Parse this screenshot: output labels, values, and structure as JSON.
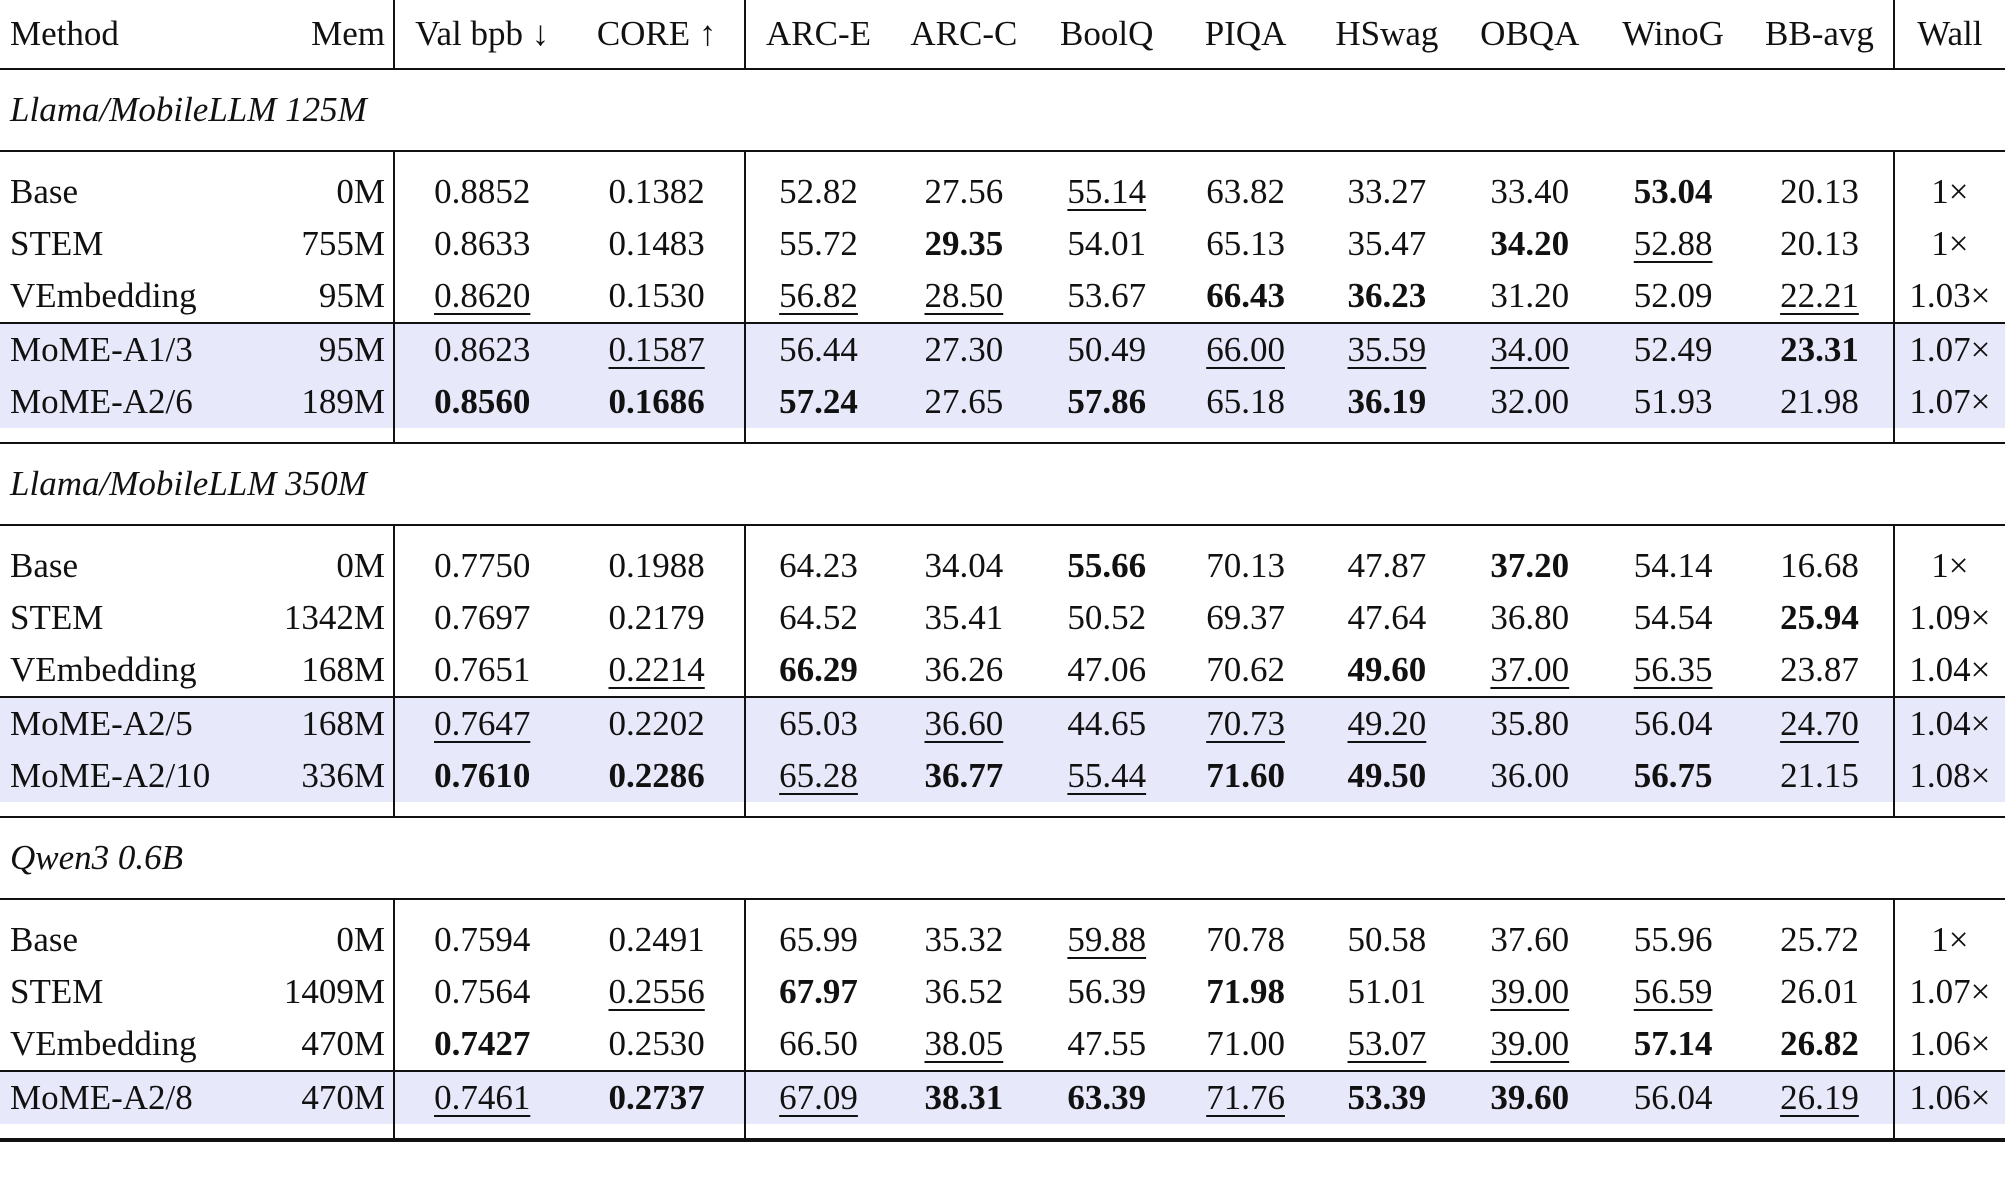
{
  "headers": [
    "Method",
    "Mem",
    "Val bpb ↓",
    "CORE ↑",
    "ARC-E",
    "ARC-C",
    "BoolQ",
    "PIQA",
    "HSwag",
    "OBQA",
    "WinoG",
    "BB-avg",
    "Wall"
  ],
  "groups": [
    {
      "title": "Llama/MobileLLM 125M",
      "rows": [
        {
          "cells": [
            "Base",
            "0M",
            "0.8852",
            "0.1382",
            "52.82",
            "27.56",
            "55.14",
            "63.82",
            "33.27",
            "33.40",
            "53.04",
            "20.13",
            "1×"
          ],
          "styles": [
            "",
            "",
            "",
            "",
            "",
            "",
            "u",
            "",
            "",
            "",
            "b",
            "",
            ""
          ],
          "highlight": false
        },
        {
          "cells": [
            "STEM",
            "755M",
            "0.8633",
            "0.1483",
            "55.72",
            "29.35",
            "54.01",
            "65.13",
            "35.47",
            "34.20",
            "52.88",
            "20.13",
            "1×"
          ],
          "styles": [
            "",
            "",
            "",
            "",
            "",
            "b",
            "",
            "",
            "",
            "b",
            "u",
            "",
            ""
          ],
          "highlight": false
        },
        {
          "cells": [
            "VEmbedding",
            "95M",
            "0.8620",
            "0.1530",
            "56.82",
            "28.50",
            "53.67",
            "66.43",
            "36.23",
            "31.20",
            "52.09",
            "22.21",
            "1.03×"
          ],
          "styles": [
            "",
            "",
            "u",
            "",
            "u",
            "u",
            "",
            "b",
            "b",
            "",
            "",
            "u",
            ""
          ],
          "highlight": false
        },
        {
          "cells": [
            "MoME-A1/3",
            "95M",
            "0.8623",
            "0.1587",
            "56.44",
            "27.30",
            "50.49",
            "66.00",
            "35.59",
            "34.00",
            "52.49",
            "23.31",
            "1.07×"
          ],
          "styles": [
            "",
            "",
            "",
            "u",
            "",
            "",
            "",
            "u",
            "u",
            "u",
            "",
            "b",
            ""
          ],
          "highlight": true
        },
        {
          "cells": [
            "MoME-A2/6",
            "189M",
            "0.8560",
            "0.1686",
            "57.24",
            "27.65",
            "57.86",
            "65.18",
            "36.19",
            "32.00",
            "51.93",
            "21.98",
            "1.07×"
          ],
          "styles": [
            "",
            "",
            "b",
            "b",
            "b",
            "",
            "b",
            "",
            "b",
            "",
            "",
            "",
            ""
          ],
          "highlight": true
        }
      ]
    },
    {
      "title": "Llama/MobileLLM 350M",
      "rows": [
        {
          "cells": [
            "Base",
            "0M",
            "0.7750",
            "0.1988",
            "64.23",
            "34.04",
            "55.66",
            "70.13",
            "47.87",
            "37.20",
            "54.14",
            "16.68",
            "1×"
          ],
          "styles": [
            "",
            "",
            "",
            "",
            "",
            "",
            "b",
            "",
            "",
            "b",
            "",
            "",
            ""
          ],
          "highlight": false
        },
        {
          "cells": [
            "STEM",
            "1342M",
            "0.7697",
            "0.2179",
            "64.52",
            "35.41",
            "50.52",
            "69.37",
            "47.64",
            "36.80",
            "54.54",
            "25.94",
            "1.09×"
          ],
          "styles": [
            "",
            "",
            "",
            "",
            "",
            "",
            "",
            "",
            "",
            "",
            "",
            "b",
            ""
          ],
          "highlight": false
        },
        {
          "cells": [
            "VEmbedding",
            "168M",
            "0.7651",
            "0.2214",
            "66.29",
            "36.26",
            "47.06",
            "70.62",
            "49.60",
            "37.00",
            "56.35",
            "23.87",
            "1.04×"
          ],
          "styles": [
            "",
            "",
            "",
            "u",
            "b",
            "",
            "",
            "",
            "b",
            "u",
            "u",
            "",
            ""
          ],
          "highlight": false
        },
        {
          "cells": [
            "MoME-A2/5",
            "168M",
            "0.7647",
            "0.2202",
            "65.03",
            "36.60",
            "44.65",
            "70.73",
            "49.20",
            "35.80",
            "56.04",
            "24.70",
            "1.04×"
          ],
          "styles": [
            "",
            "",
            "u",
            "",
            "",
            "u",
            "",
            "u",
            "u",
            "",
            "",
            "u",
            ""
          ],
          "highlight": true
        },
        {
          "cells": [
            "MoME-A2/10",
            "336M",
            "0.7610",
            "0.2286",
            "65.28",
            "36.77",
            "55.44",
            "71.60",
            "49.50",
            "36.00",
            "56.75",
            "21.15",
            "1.08×"
          ],
          "styles": [
            "",
            "",
            "b",
            "b",
            "u",
            "b",
            "u",
            "b",
            "b",
            "",
            "b",
            "",
            ""
          ],
          "highlight": true
        }
      ]
    },
    {
      "title": "Qwen3 0.6B",
      "rows": [
        {
          "cells": [
            "Base",
            "0M",
            "0.7594",
            "0.2491",
            "65.99",
            "35.32",
            "59.88",
            "70.78",
            "50.58",
            "37.60",
            "55.96",
            "25.72",
            "1×"
          ],
          "styles": [
            "",
            "",
            "",
            "",
            "",
            "",
            "u",
            "",
            "",
            "",
            "",
            "",
            ""
          ],
          "highlight": false
        },
        {
          "cells": [
            "STEM",
            "1409M",
            "0.7564",
            "0.2556",
            "67.97",
            "36.52",
            "56.39",
            "71.98",
            "51.01",
            "39.00",
            "56.59",
            "26.01",
            "1.07×"
          ],
          "styles": [
            "",
            "",
            "",
            "u",
            "b",
            "",
            "",
            "b",
            "",
            "u",
            "u",
            "",
            ""
          ],
          "highlight": false
        },
        {
          "cells": [
            "VEmbedding",
            "470M",
            "0.7427",
            "0.2530",
            "66.50",
            "38.05",
            "47.55",
            "71.00",
            "53.07",
            "39.00",
            "57.14",
            "26.82",
            "1.06×"
          ],
          "styles": [
            "",
            "",
            "b",
            "",
            "",
            "u",
            "",
            "",
            "u",
            "u",
            "b",
            "b",
            ""
          ],
          "highlight": false
        },
        {
          "cells": [
            "MoME-A2/8",
            "470M",
            "0.7461",
            "0.2737",
            "67.09",
            "38.31",
            "63.39",
            "71.76",
            "53.39",
            "39.60",
            "56.04",
            "26.19",
            "1.06×"
          ],
          "styles": [
            "",
            "",
            "u",
            "b",
            "u",
            "b",
            "b",
            "u",
            "b",
            "b",
            "",
            "u",
            ""
          ],
          "highlight": true
        }
      ]
    }
  ]
}
